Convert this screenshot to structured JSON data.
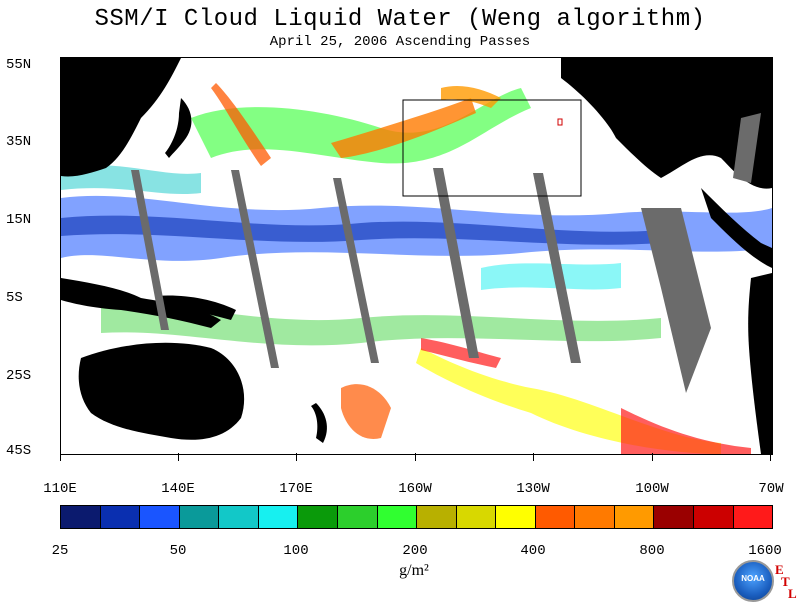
{
  "title": "SSM/I Cloud Liquid Water (Weng algorithm)",
  "subtitle": "April 25, 2006  Ascending Passes",
  "lat_labels": [
    "55N",
    "35N",
    "15N",
    "5S",
    "25S",
    "45S"
  ],
  "lon_labels": [
    "110E",
    "140E",
    "170E",
    "160W",
    "130W",
    "100W",
    "70W"
  ],
  "colorbar": {
    "colors": [
      "#0b1a6e",
      "#0a2fb0",
      "#1a55ff",
      "#0a9a9a",
      "#12c8c8",
      "#17f0f0",
      "#0a9a0a",
      "#2ccf2c",
      "#30ff30",
      "#b8b000",
      "#d8d800",
      "#ffff00",
      "#ff5a00",
      "#ff7a00",
      "#ff9a00",
      "#9a0000",
      "#cc0000",
      "#ff1a1a"
    ],
    "labels": [
      "25",
      "50",
      "100",
      "200",
      "400",
      "800",
      "1600"
    ],
    "unit": "g/m²"
  },
  "logo": {
    "text": "NOAA",
    "letters": [
      "E",
      "T",
      "L"
    ]
  },
  "map_colors": {
    "land": "#000000",
    "missing_swath": "#6b6b6b",
    "background": "#ffffff"
  }
}
